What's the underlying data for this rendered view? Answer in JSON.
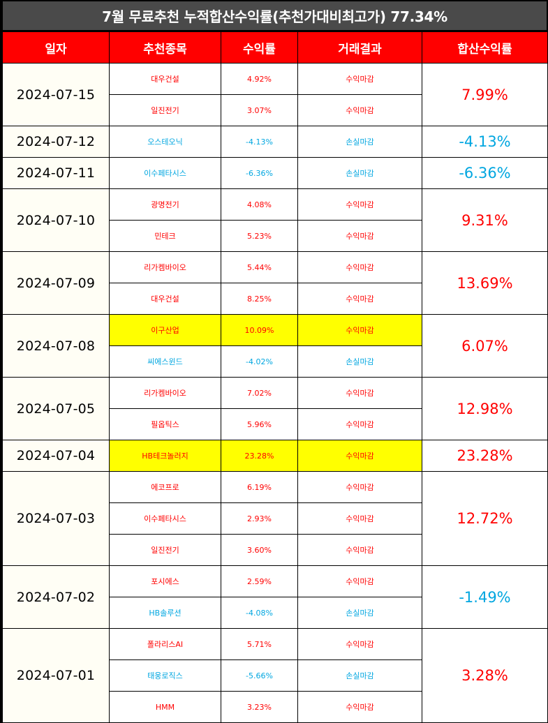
{
  "title": "7월 무료추천 누적합산수익률(추천가대비최고가) 77.34%",
  "headers": [
    "일자",
    "추천종목",
    "수익률",
    "거래결과",
    "합산수익률"
  ],
  "colors": {
    "gain": "#ff0000",
    "loss": "#00a6e0",
    "header": "#ff0000",
    "highlight": "#ffff00"
  },
  "rows": [
    {
      "date": "2024-07-15",
      "total": "7.99%",
      "total_status": "gain",
      "items": [
        {
          "name": "대우건설",
          "rate": "4.92%",
          "result": "수익마감",
          "status": "gain",
          "highlight": false
        },
        {
          "name": "일진전기",
          "rate": "3.07%",
          "result": "수익마감",
          "status": "gain",
          "highlight": false
        }
      ]
    },
    {
      "date": "2024-07-12",
      "total": "-4.13%",
      "total_status": "loss",
      "items": [
        {
          "name": "오스테오닉",
          "rate": "-4.13%",
          "result": "손실마감",
          "status": "loss",
          "highlight": false
        }
      ]
    },
    {
      "date": "2024-07-11",
      "total": "-6.36%",
      "total_status": "loss",
      "items": [
        {
          "name": "이수페타시스",
          "rate": "-6.36%",
          "result": "손실마감",
          "status": "loss",
          "highlight": false
        }
      ]
    },
    {
      "date": "2024-07-10",
      "total": "9.31%",
      "total_status": "gain",
      "items": [
        {
          "name": "광명전기",
          "rate": "4.08%",
          "result": "수익마감",
          "status": "gain",
          "highlight": false
        },
        {
          "name": "민테크",
          "rate": "5.23%",
          "result": "수익마감",
          "status": "gain",
          "highlight": false
        }
      ]
    },
    {
      "date": "2024-07-09",
      "total": "13.69%",
      "total_status": "gain",
      "items": [
        {
          "name": "리가켐바이오",
          "rate": "5.44%",
          "result": "수익마감",
          "status": "gain",
          "highlight": false
        },
        {
          "name": "대우건설",
          "rate": "8.25%",
          "result": "수익마감",
          "status": "gain",
          "highlight": false
        }
      ]
    },
    {
      "date": "2024-07-08",
      "total": "6.07%",
      "total_status": "gain",
      "items": [
        {
          "name": "이구산업",
          "rate": "10.09%",
          "result": "수익마감",
          "status": "gain",
          "highlight": true
        },
        {
          "name": "씨에스윈드",
          "rate": "-4.02%",
          "result": "손실마감",
          "status": "loss",
          "highlight": false
        }
      ]
    },
    {
      "date": "2024-07-05",
      "total": "12.98%",
      "total_status": "gain",
      "items": [
        {
          "name": "리가켐바이오",
          "rate": "7.02%",
          "result": "수익마감",
          "status": "gain",
          "highlight": false
        },
        {
          "name": "필옵틱스",
          "rate": "5.96%",
          "result": "수익마감",
          "status": "gain",
          "highlight": false
        }
      ]
    },
    {
      "date": "2024-07-04",
      "total": "23.28%",
      "total_status": "gain",
      "items": [
        {
          "name": "HB테크놀러지",
          "rate": "23.28%",
          "result": "수익마감",
          "status": "gain",
          "highlight": true
        }
      ]
    },
    {
      "date": "2024-07-03",
      "total": "12.72%",
      "total_status": "gain",
      "items": [
        {
          "name": "에코프로",
          "rate": "6.19%",
          "result": "수익마감",
          "status": "gain",
          "highlight": false
        },
        {
          "name": "이수페타시스",
          "rate": "2.93%",
          "result": "수익마감",
          "status": "gain",
          "highlight": false
        },
        {
          "name": "일진전기",
          "rate": "3.60%",
          "result": "수익마감",
          "status": "gain",
          "highlight": false
        }
      ]
    },
    {
      "date": "2024-07-02",
      "total": "-1.49%",
      "total_status": "loss",
      "items": [
        {
          "name": "포시에스",
          "rate": "2.59%",
          "result": "수익마감",
          "status": "gain",
          "highlight": false
        },
        {
          "name": "HB솔루션",
          "rate": "-4.08%",
          "result": "손실마감",
          "status": "loss",
          "highlight": false
        }
      ]
    },
    {
      "date": "2024-07-01",
      "total": "3.28%",
      "total_status": "gain",
      "items": [
        {
          "name": "폴라리스AI",
          "rate": "5.71%",
          "result": "수익마감",
          "status": "gain",
          "highlight": false
        },
        {
          "name": "태웅로직스",
          "rate": "-5.66%",
          "result": "손실마감",
          "status": "loss",
          "highlight": false
        },
        {
          "name": "HMM",
          "rate": "3.23%",
          "result": "수익마감",
          "status": "gain",
          "highlight": false
        }
      ]
    }
  ]
}
